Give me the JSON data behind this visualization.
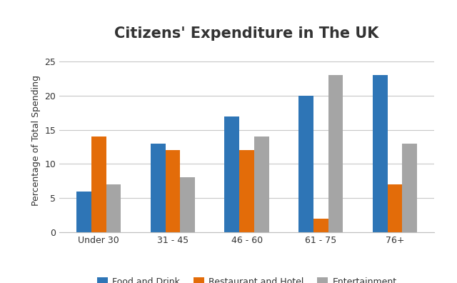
{
  "title": "Citizens' Expenditure in The UK",
  "ylabel": "Percentage of Total Spending",
  "categories": [
    "Under 30",
    "31 - 45",
    "46 - 60",
    "61 - 75",
    "76+"
  ],
  "series": [
    {
      "label": "Food and Drink",
      "color": "#2E75B6",
      "values": [
        6,
        13,
        17,
        20,
        23
      ]
    },
    {
      "label": "Restaurant and Hotel",
      "color": "#E36C09",
      "values": [
        14,
        12,
        12,
        2,
        7
      ]
    },
    {
      "label": "Entertainment",
      "color": "#A5A5A5",
      "values": [
        7,
        8,
        14,
        23,
        13
      ]
    }
  ],
  "ylim": [
    0,
    27
  ],
  "yticks": [
    0,
    5,
    10,
    15,
    20,
    25
  ],
  "bar_width": 0.2,
  "title_fontsize": 15,
  "axis_label_fontsize": 9,
  "tick_fontsize": 9,
  "legend_fontsize": 9,
  "background_color": "#FFFFFF",
  "outer_background": "#FFFFFF",
  "grid_color": "#C8C8C8",
  "border_color": "#BFBFBF"
}
